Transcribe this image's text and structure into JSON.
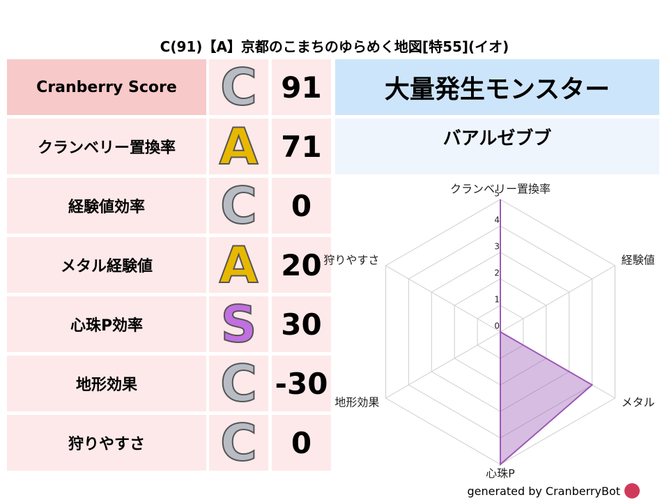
{
  "header": {
    "title": "C(91)【A】京都のこまちのゆらめく地図[特55](イオ)"
  },
  "table": {
    "rows": [
      {
        "label": "Cranberry Score",
        "grade": "C",
        "grade_color": "#b8bcc4",
        "score": "91"
      },
      {
        "label": "クランベリー置換率",
        "grade": "A",
        "grade_color": "#e8b800",
        "score": "71"
      },
      {
        "label": "経験値効率",
        "grade": "C",
        "grade_color": "#b8bcc4",
        "score": "0"
      },
      {
        "label": "メタル経験値",
        "grade": "A",
        "grade_color": "#e8b800",
        "score": "20"
      },
      {
        "label": "心珠P効率",
        "grade": "S",
        "grade_color": "#c070e0",
        "score": "30"
      },
      {
        "label": "地形効果",
        "grade": "C",
        "grade_color": "#b8bcc4",
        "score": "-30"
      },
      {
        "label": "狩りやすさ",
        "grade": "C",
        "grade_color": "#b8bcc4",
        "score": "0"
      }
    ]
  },
  "monster": {
    "heading": "大量発生モンスター",
    "name": "バアルゼブブ"
  },
  "chart_data": {
    "type": "radar",
    "categories": [
      "クランベリー置換率",
      "経験値",
      "メタル",
      "心珠P",
      "地形効果",
      "狩りやすさ"
    ],
    "values": [
      5,
      0,
      4,
      5,
      0,
      0
    ],
    "color": "#9b59b6",
    "ylim": [
      0,
      5
    ],
    "yticks": [
      0,
      1,
      2,
      3,
      4,
      5
    ],
    "grid": true
  },
  "footer": {
    "credit": "generated by CranberryBot"
  }
}
